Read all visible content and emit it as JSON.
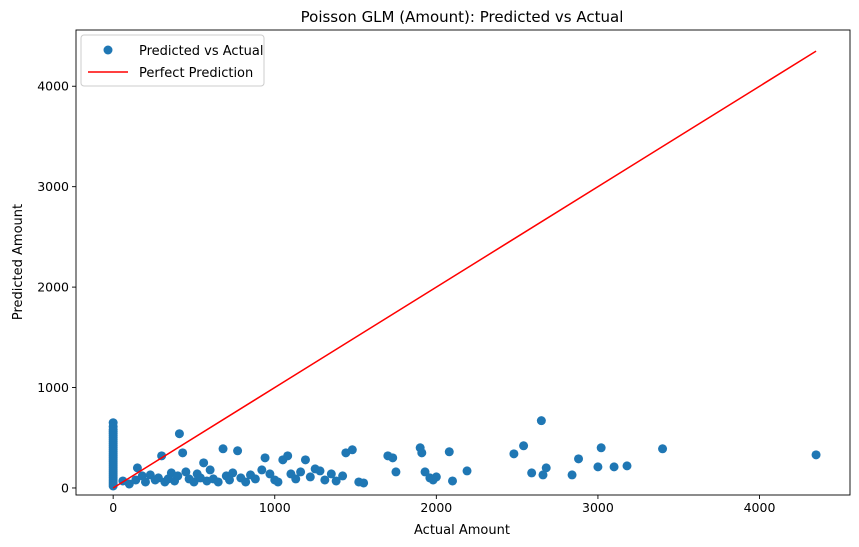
{
  "chart_data": {
    "type": "scatter",
    "title": "Poisson GLM (Amount): Predicted vs Actual",
    "xlabel": "Actual Amount",
    "ylabel": "Predicted Amount",
    "xlim": [
      -230,
      4560
    ],
    "ylim": [
      -70,
      4560
    ],
    "xticks": [
      0,
      1000,
      2000,
      3000,
      4000
    ],
    "yticks": [
      0,
      1000,
      2000,
      3000,
      4000
    ],
    "xtick_labels": [
      "0",
      "1000",
      "2000",
      "3000",
      "4000"
    ],
    "ytick_labels": [
      "0",
      "1000",
      "2000",
      "3000",
      "4000"
    ],
    "grid": false,
    "legend_position": "top-left",
    "series": [
      {
        "name": "Predicted vs Actual",
        "kind": "scatter",
        "color": "#1f77b4",
        "points": [
          [
            0,
            650
          ],
          [
            0,
            610
          ],
          [
            0,
            580
          ],
          [
            0,
            560
          ],
          [
            0,
            540
          ],
          [
            0,
            520
          ],
          [
            0,
            500
          ],
          [
            0,
            480
          ],
          [
            0,
            460
          ],
          [
            0,
            440
          ],
          [
            0,
            420
          ],
          [
            0,
            400
          ],
          [
            0,
            380
          ],
          [
            0,
            360
          ],
          [
            0,
            340
          ],
          [
            0,
            320
          ],
          [
            0,
            300
          ],
          [
            0,
            280
          ],
          [
            0,
            260
          ],
          [
            0,
            240
          ],
          [
            0,
            220
          ],
          [
            0,
            200
          ],
          [
            0,
            180
          ],
          [
            0,
            160
          ],
          [
            0,
            140
          ],
          [
            0,
            120
          ],
          [
            0,
            100
          ],
          [
            0,
            80
          ],
          [
            0,
            60
          ],
          [
            0,
            40
          ],
          [
            0,
            20
          ],
          [
            60,
            70
          ],
          [
            100,
            40
          ],
          [
            140,
            80
          ],
          [
            150,
            200
          ],
          [
            180,
            120
          ],
          [
            200,
            60
          ],
          [
            230,
            130
          ],
          [
            260,
            80
          ],
          [
            280,
            100
          ],
          [
            300,
            320
          ],
          [
            320,
            60
          ],
          [
            340,
            90
          ],
          [
            360,
            150
          ],
          [
            380,
            70
          ],
          [
            400,
            120
          ],
          [
            410,
            540
          ],
          [
            430,
            350
          ],
          [
            450,
            160
          ],
          [
            470,
            90
          ],
          [
            500,
            60
          ],
          [
            520,
            140
          ],
          [
            540,
            100
          ],
          [
            560,
            250
          ],
          [
            580,
            70
          ],
          [
            600,
            180
          ],
          [
            620,
            90
          ],
          [
            650,
            60
          ],
          [
            680,
            390
          ],
          [
            700,
            120
          ],
          [
            720,
            80
          ],
          [
            740,
            150
          ],
          [
            770,
            370
          ],
          [
            790,
            100
          ],
          [
            820,
            60
          ],
          [
            850,
            130
          ],
          [
            880,
            90
          ],
          [
            920,
            180
          ],
          [
            940,
            300
          ],
          [
            970,
            140
          ],
          [
            1000,
            80
          ],
          [
            1020,
            60
          ],
          [
            1050,
            280
          ],
          [
            1080,
            320
          ],
          [
            1100,
            140
          ],
          [
            1130,
            90
          ],
          [
            1160,
            160
          ],
          [
            1190,
            280
          ],
          [
            1220,
            110
          ],
          [
            1250,
            190
          ],
          [
            1280,
            170
          ],
          [
            1310,
            80
          ],
          [
            1350,
            140
          ],
          [
            1380,
            70
          ],
          [
            1420,
            120
          ],
          [
            1440,
            350
          ],
          [
            1480,
            380
          ],
          [
            1520,
            60
          ],
          [
            1550,
            50
          ],
          [
            1700,
            320
          ],
          [
            1730,
            300
          ],
          [
            1750,
            160
          ],
          [
            1900,
            400
          ],
          [
            1910,
            350
          ],
          [
            1930,
            160
          ],
          [
            1960,
            100
          ],
          [
            1980,
            80
          ],
          [
            2000,
            110
          ],
          [
            2080,
            360
          ],
          [
            2100,
            70
          ],
          [
            2190,
            170
          ],
          [
            2480,
            340
          ],
          [
            2540,
            420
          ],
          [
            2590,
            150
          ],
          [
            2650,
            670
          ],
          [
            2660,
            130
          ],
          [
            2680,
            200
          ],
          [
            2840,
            130
          ],
          [
            2880,
            290
          ],
          [
            3000,
            210
          ],
          [
            3020,
            400
          ],
          [
            3100,
            210
          ],
          [
            3180,
            220
          ],
          [
            3400,
            390
          ],
          [
            4350,
            330
          ]
        ]
      },
      {
        "name": "Perfect Prediction",
        "kind": "line",
        "color": "#ff0000",
        "x": [
          0,
          4350
        ],
        "y": [
          0,
          4350
        ]
      }
    ]
  }
}
